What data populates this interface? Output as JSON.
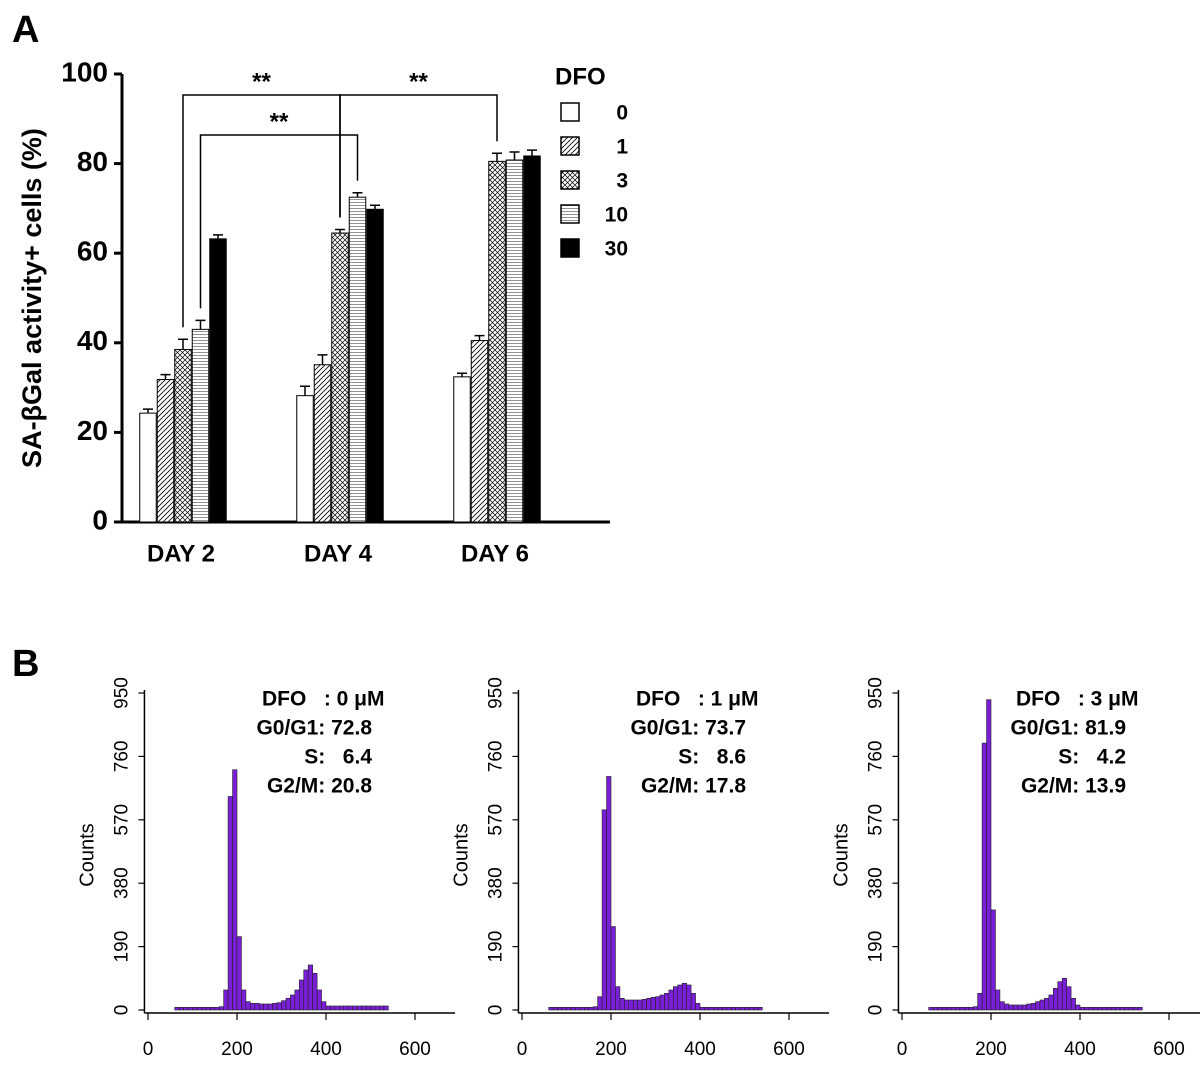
{
  "chart_data": [
    {
      "type": "bar",
      "panel_label": "A",
      "ylabel": "SA-βGal activity+ cells (%)",
      "legend_title": "DFO",
      "categories": [
        "DAY 2",
        "DAY 4",
        "DAY 6"
      ],
      "series": [
        {
          "name": "0",
          "color": "#ffffff",
          "pattern": "none",
          "values": [
            24.3,
            28.2,
            32.4
          ],
          "errors": [
            0.9,
            2.1,
            0.8
          ]
        },
        {
          "name": "1",
          "color": "#ffffff",
          "pattern": "diagonal",
          "values": [
            31.8,
            35.1,
            40.5
          ],
          "errors": [
            1.1,
            2.2,
            1.1
          ]
        },
        {
          "name": "3",
          "color": "#ffffff",
          "pattern": "cross",
          "values": [
            38.5,
            64.5,
            80.5
          ],
          "errors": [
            2.3,
            0.8,
            1.8
          ]
        },
        {
          "name": "10",
          "color": "#ffffff",
          "pattern": "horizontal",
          "values": [
            43,
            72.5,
            80.8
          ],
          "errors": [
            2,
            1,
            1.8
          ]
        },
        {
          "name": "30",
          "color": "#000000",
          "pattern": "solid",
          "values": [
            63.2,
            69.8,
            81.7
          ],
          "errors": [
            0.9,
            0.9,
            1.3
          ]
        }
      ],
      "ylim": [
        0,
        100
      ],
      "yticks": [
        0,
        20,
        40,
        60,
        80,
        100
      ],
      "annotations": [
        "**",
        "**",
        "**"
      ]
    },
    {
      "type": "histogram",
      "panel_label": "B",
      "ylabel": "Counts",
      "color": "#7a1fd8",
      "bins": [
        60,
        70,
        80,
        90,
        100,
        110,
        120,
        130,
        140,
        150,
        160,
        170,
        180,
        190,
        200,
        210,
        220,
        230,
        240,
        250,
        260,
        270,
        280,
        290,
        300,
        310,
        320,
        330,
        340,
        350,
        360,
        370,
        380,
        390,
        400,
        410,
        420,
        430,
        440,
        450,
        460,
        470,
        480,
        490,
        500,
        510,
        520,
        530,
        540
      ],
      "counts": [
        8,
        8,
        8,
        8,
        8,
        8,
        8,
        8,
        8,
        8,
        10,
        60,
        640,
        720,
        220,
        60,
        25,
        20,
        20,
        18,
        18,
        18,
        20,
        22,
        28,
        35,
        45,
        60,
        90,
        120,
        135,
        110,
        60,
        25,
        12,
        12,
        12,
        12,
        12,
        12,
        12,
        12,
        12,
        12,
        12,
        12,
        12,
        12
      ],
      "xlim": [
        -8,
        690
      ],
      "xticks": [
        0,
        200,
        400,
        600
      ],
      "ylim": [
        0,
        950
      ],
      "yticks": [
        0,
        190,
        380,
        570,
        760,
        950
      ],
      "annotations": [
        "DFO   : 0 μM",
        "G0/G1: 72.8",
        "S:   6.4",
        "G2/M: 20.8"
      ]
    },
    {
      "type": "histogram",
      "ylabel": "Counts",
      "color": "#7a1fd8",
      "bins": [
        60,
        70,
        80,
        90,
        100,
        110,
        120,
        130,
        140,
        150,
        160,
        170,
        180,
        190,
        200,
        210,
        220,
        230,
        240,
        250,
        260,
        270,
        280,
        290,
        300,
        310,
        320,
        330,
        340,
        350,
        360,
        370,
        380,
        390,
        400,
        410,
        420,
        430,
        440,
        450,
        460,
        470,
        480,
        490,
        500,
        510,
        520,
        530,
        540
      ],
      "counts": [
        8,
        8,
        8,
        8,
        8,
        8,
        8,
        8,
        8,
        8,
        10,
        40,
        600,
        700,
        250,
        70,
        35,
        30,
        30,
        30,
        30,
        32,
        35,
        38,
        40,
        45,
        50,
        60,
        70,
        75,
        80,
        75,
        50,
        20,
        8,
        8,
        8,
        8,
        8,
        8,
        8,
        8,
        8,
        8,
        8,
        8,
        8,
        8
      ],
      "xlim": [
        -8,
        690
      ],
      "xticks": [
        0,
        200,
        400,
        600
      ],
      "ylim": [
        0,
        950
      ],
      "yticks": [
        0,
        190,
        380,
        570,
        760,
        950
      ],
      "annotations": [
        "DFO   : 1 μM",
        "G0/G1: 73.7",
        "S:   8.6",
        "G2/M: 17.8"
      ]
    },
    {
      "type": "histogram",
      "ylabel": "Counts",
      "color": "#7a1fd8",
      "bins": [
        60,
        70,
        80,
        90,
        100,
        110,
        120,
        130,
        140,
        150,
        160,
        170,
        180,
        190,
        200,
        210,
        220,
        230,
        240,
        250,
        260,
        270,
        280,
        290,
        300,
        310,
        320,
        330,
        340,
        350,
        360,
        370,
        380,
        390,
        400,
        410,
        420,
        430,
        440,
        450,
        460,
        470,
        480,
        490,
        500,
        510,
        520,
        530,
        540
      ],
      "counts": [
        8,
        8,
        8,
        8,
        8,
        8,
        8,
        8,
        8,
        8,
        10,
        50,
        800,
        930,
        300,
        60,
        25,
        18,
        15,
        15,
        15,
        15,
        18,
        20,
        25,
        30,
        35,
        45,
        65,
        85,
        95,
        70,
        35,
        15,
        8,
        8,
        8,
        8,
        8,
        8,
        8,
        8,
        8,
        8,
        8,
        8,
        8,
        8
      ],
      "xlim": [
        -8,
        690
      ],
      "xticks": [
        0,
        200,
        400,
        600
      ],
      "ylim": [
        0,
        950
      ],
      "yticks": [
        0,
        190,
        380,
        570,
        760,
        950
      ],
      "annotations": [
        "DFO   : 3 μM",
        "G0/G1: 81.9",
        "S:   4.2",
        "G2/M: 13.9"
      ]
    }
  ]
}
